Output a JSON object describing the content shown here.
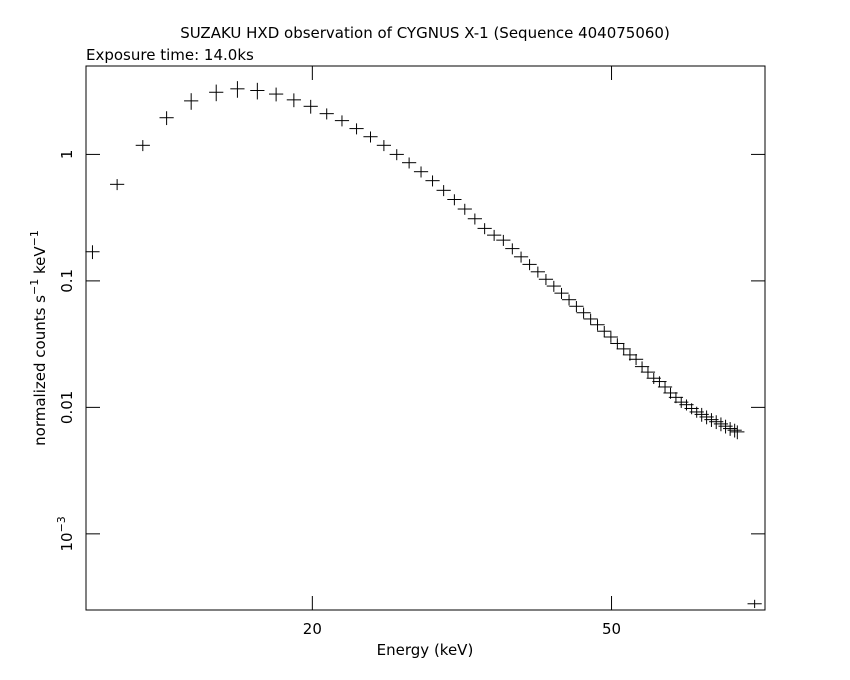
{
  "chart_data": {
    "type": "scatter",
    "title": "SUZAKU HXD observation of CYGNUS X-1 (Sequence 404075060)",
    "subtitle": "Exposure time: 14.0ks",
    "xlabel": "Energy (keV)",
    "ylabel_main": "normalized counts s",
    "ylabel_sup1": "−1",
    "ylabel_mid": " keV",
    "ylabel_sup2": "−1",
    "x_scale": "log",
    "y_scale": "log",
    "xlim": [
      10,
      80
    ],
    "ylim": [
      0.00025,
      5
    ],
    "x_ticks": [
      {
        "value": 20,
        "label": "20"
      },
      {
        "value": 50,
        "label": "50"
      }
    ],
    "y_ticks": [
      {
        "value": 1,
        "label": "1"
      },
      {
        "value": 0.1,
        "label": "0.1"
      },
      {
        "value": 0.01,
        "label": "0.01"
      },
      {
        "value": 0.001,
        "label": "10",
        "sup": "−3"
      }
    ],
    "grid": false,
    "color": "#000000",
    "series": [
      {
        "points": [
          [
            10.2,
            0.17,
            0.25
          ],
          [
            11.0,
            0.58,
            0.2
          ],
          [
            11.9,
            1.18,
            0.2
          ],
          [
            12.8,
            1.95,
            0.25
          ],
          [
            13.8,
            2.65,
            0.3
          ],
          [
            14.9,
            3.1,
            0.3
          ],
          [
            15.9,
            3.3,
            0.3
          ],
          [
            16.9,
            3.2,
            0.3
          ],
          [
            17.9,
            3.0,
            0.25
          ],
          [
            18.9,
            2.7,
            0.25
          ],
          [
            19.9,
            2.4,
            0.25
          ],
          [
            20.9,
            2.1,
            0.2
          ],
          [
            21.9,
            1.85,
            0.2
          ],
          [
            22.9,
            1.6,
            0.2
          ],
          [
            23.9,
            1.38,
            0.2
          ],
          [
            24.9,
            1.18,
            0.2
          ],
          [
            25.9,
            1.0,
            0.2
          ],
          [
            26.9,
            0.86,
            0.2
          ],
          [
            27.9,
            0.73,
            0.2
          ],
          [
            28.9,
            0.62,
            0.2
          ],
          [
            29.9,
            0.52,
            0.2
          ],
          [
            30.9,
            0.44,
            0.2
          ],
          [
            31.9,
            0.37,
            0.2
          ],
          [
            32.9,
            0.31,
            0.2
          ],
          [
            33.9,
            0.26,
            0.2
          ],
          [
            34.9,
            0.23,
            0.2
          ],
          [
            35.9,
            0.21,
            0.2
          ],
          [
            36.9,
            0.18,
            0.2
          ],
          [
            37.9,
            0.155,
            0.2
          ],
          [
            38.9,
            0.135,
            0.2
          ],
          [
            39.9,
            0.118,
            0.2
          ],
          [
            40.9,
            0.103,
            0.2
          ],
          [
            41.9,
            0.091,
            0.2
          ],
          [
            42.9,
            0.08,
            0.2
          ],
          [
            43.9,
            0.071,
            0.2
          ],
          [
            44.9,
            0.063,
            0.2
          ],
          [
            45.9,
            0.056,
            0.2
          ],
          [
            46.9,
            0.05,
            0.2
          ],
          [
            47.9,
            0.045,
            0.2
          ],
          [
            48.9,
            0.04,
            0.2
          ],
          [
            49.9,
            0.036,
            0.2
          ],
          [
            50.9,
            0.032,
            0.2
          ],
          [
            51.9,
            0.029,
            0.2
          ],
          [
            52.9,
            0.026,
            0.2
          ],
          [
            53.9,
            0.024,
            0.2
          ],
          [
            54.9,
            0.021,
            0.2
          ],
          [
            55.9,
            0.019,
            0.2
          ],
          [
            56.9,
            0.017,
            0.2
          ],
          [
            57.9,
            0.016,
            0.2
          ],
          [
            58.9,
            0.0145,
            0.2
          ],
          [
            59.9,
            0.013,
            0.2
          ],
          [
            60.9,
            0.012,
            0.2
          ],
          [
            61.9,
            0.011,
            0.2
          ],
          [
            62.9,
            0.0105,
            0.2
          ],
          [
            63.9,
            0.0098,
            0.2
          ],
          [
            64.9,
            0.0092,
            0.2
          ],
          [
            65.9,
            0.0088,
            0.25
          ],
          [
            66.9,
            0.0084,
            0.25
          ],
          [
            67.9,
            0.008,
            0.25
          ],
          [
            68.9,
            0.0077,
            0.25
          ],
          [
            69.9,
            0.0074,
            0.25
          ],
          [
            70.9,
            0.0071,
            0.25
          ],
          [
            71.9,
            0.0068,
            0.25
          ],
          [
            72.9,
            0.0066,
            0.25
          ],
          [
            73.5,
            0.0064,
            0.25
          ],
          [
            77.5,
            0.00028,
            0.15
          ]
        ]
      }
    ]
  }
}
